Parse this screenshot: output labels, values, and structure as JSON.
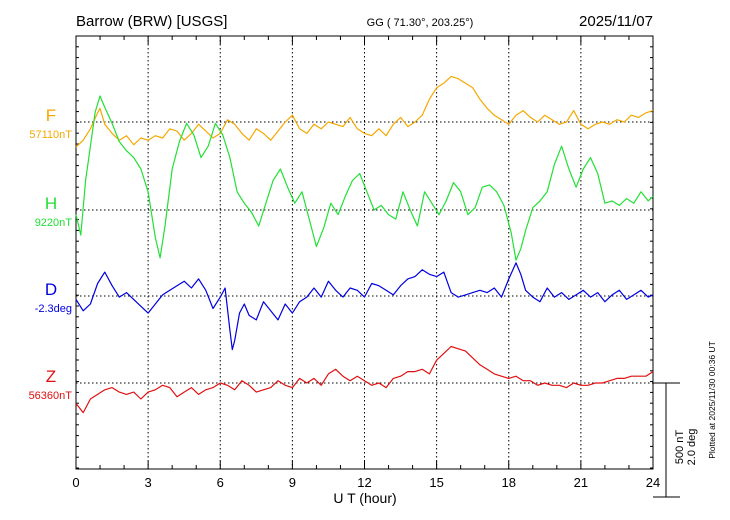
{
  "header": {
    "station": "Barrow (BRW)  [USGS]",
    "coords": "GG ( 71.30°, 203.25°)",
    "date": "2025/11/07"
  },
  "plotted_note": "Plotted at 2025/11/30 00:36 UT",
  "scale": {
    "nt": "500 nT",
    "deg": "2.0 deg"
  },
  "chart_data": {
    "type": "line",
    "xlabel": "U T (hour)",
    "xlim": [
      0,
      24
    ],
    "xticks": [
      0,
      3,
      6,
      9,
      12,
      15,
      18,
      21,
      24
    ],
    "grid": true,
    "series": [
      {
        "name": "F",
        "baseline_label": "57110nT",
        "color": "#f5a800",
        "units": "nT",
        "baseline": 57110,
        "x": [
          0,
          0.3,
          0.6,
          0.9,
          1.0,
          1.2,
          1.5,
          1.8,
          2.1,
          2.4,
          2.7,
          3.0,
          3.3,
          3.6,
          3.9,
          4.2,
          4.5,
          4.8,
          5.1,
          5.4,
          5.7,
          6.0,
          6.3,
          6.6,
          6.9,
          7.2,
          7.5,
          7.8,
          8.1,
          8.4,
          8.7,
          9.0,
          9.3,
          9.6,
          9.9,
          10.2,
          10.5,
          10.8,
          11.1,
          11.4,
          11.7,
          12.0,
          12.3,
          12.6,
          12.9,
          13.2,
          13.5,
          13.8,
          14.1,
          14.4,
          14.7,
          15.0,
          15.3,
          15.6,
          15.9,
          16.2,
          16.5,
          16.8,
          17.1,
          17.4,
          17.7,
          18.0,
          18.3,
          18.6,
          18.9,
          19.2,
          19.5,
          19.8,
          20.1,
          20.4,
          20.7,
          21.0,
          21.3,
          21.6,
          21.9,
          22.2,
          22.5,
          22.8,
          23.1,
          23.4,
          23.7,
          24.0
        ],
        "values": [
          57000,
          57030,
          57080,
          57150,
          57170,
          57100,
          57060,
          57030,
          57050,
          57010,
          57040,
          57030,
          57050,
          57040,
          57080,
          57070,
          57030,
          57060,
          57100,
          57070,
          57040,
          57060,
          57120,
          57100,
          57060,
          57030,
          57080,
          57060,
          57030,
          57070,
          57110,
          57140,
          57080,
          57060,
          57100,
          57080,
          57110,
          57100,
          57090,
          57130,
          57080,
          57060,
          57050,
          57080,
          57050,
          57100,
          57130,
          57090,
          57110,
          57140,
          57210,
          57260,
          57280,
          57310,
          57300,
          57280,
          57260,
          57210,
          57170,
          57140,
          57120,
          57100,
          57140,
          57160,
          57130,
          57110,
          57140,
          57120,
          57100,
          57110,
          57160,
          57100,
          57080,
          57100,
          57110,
          57100,
          57120,
          57110,
          57140,
          57130,
          57150,
          57160
        ]
      },
      {
        "name": "H",
        "baseline_label": "9220nT",
        "color": "#22e035",
        "units": "nT",
        "baseline": 9220,
        "x": [
          0,
          0.2,
          0.4,
          0.6,
          0.8,
          1.0,
          1.2,
          1.5,
          1.8,
          2.1,
          2.4,
          2.7,
          3.0,
          3.3,
          3.5,
          3.7,
          4.0,
          4.3,
          4.6,
          4.9,
          5.2,
          5.5,
          5.8,
          6.1,
          6.4,
          6.7,
          7.0,
          7.3,
          7.6,
          7.9,
          8.2,
          8.5,
          8.8,
          9.1,
          9.4,
          9.7,
          10.0,
          10.3,
          10.6,
          10.9,
          11.2,
          11.5,
          11.8,
          12.1,
          12.4,
          12.7,
          13.0,
          13.3,
          13.6,
          13.9,
          14.2,
          14.5,
          14.8,
          15.1,
          15.4,
          15.7,
          16.0,
          16.3,
          16.6,
          16.9,
          17.2,
          17.5,
          17.8,
          18.1,
          18.3,
          18.5,
          18.7,
          19.0,
          19.3,
          19.6,
          19.9,
          20.2,
          20.5,
          20.8,
          21.1,
          21.4,
          21.7,
          22.0,
          22.3,
          22.6,
          22.9,
          23.2,
          23.5,
          23.8,
          24.0
        ],
        "values": [
          9200,
          9110,
          9350,
          9500,
          9650,
          9720,
          9670,
          9600,
          9520,
          9480,
          9450,
          9400,
          9300,
          9100,
          9010,
          9150,
          9400,
          9520,
          9600,
          9550,
          9450,
          9500,
          9600,
          9550,
          9450,
          9300,
          9250,
          9210,
          9150,
          9250,
          9350,
          9400,
          9320,
          9250,
          9300,
          9180,
          9060,
          9140,
          9250,
          9200,
          9280,
          9350,
          9380,
          9300,
          9220,
          9240,
          9200,
          9180,
          9300,
          9220,
          9150,
          9300,
          9250,
          9200,
          9260,
          9340,
          9300,
          9200,
          9230,
          9320,
          9330,
          9300,
          9240,
          9120,
          9000,
          9050,
          9130,
          9230,
          9260,
          9300,
          9420,
          9500,
          9400,
          9320,
          9400,
          9450,
          9380,
          9250,
          9260,
          9240,
          9270,
          9250,
          9300,
          9260,
          9280
        ]
      },
      {
        "name": "D",
        "baseline_label": "-2.3deg",
        "color": "#0000e0",
        "units": "deg",
        "baseline": -2.3,
        "x": [
          0,
          0.3,
          0.6,
          0.9,
          1.2,
          1.5,
          1.8,
          2.1,
          2.4,
          2.7,
          3.0,
          3.3,
          3.6,
          3.9,
          4.2,
          4.5,
          4.8,
          5.1,
          5.4,
          5.7,
          6.0,
          6.2,
          6.4,
          6.5,
          6.6,
          6.8,
          7.0,
          7.2,
          7.5,
          7.8,
          8.1,
          8.4,
          8.7,
          9.0,
          9.3,
          9.6,
          9.9,
          10.2,
          10.5,
          10.8,
          11.1,
          11.4,
          11.7,
          12.0,
          12.3,
          12.6,
          12.9,
          13.2,
          13.5,
          13.8,
          14.1,
          14.4,
          14.7,
          15.0,
          15.3,
          15.6,
          15.9,
          16.2,
          16.5,
          16.8,
          17.1,
          17.4,
          17.7,
          18.0,
          18.3,
          18.5,
          18.7,
          19.0,
          19.3,
          19.6,
          19.9,
          20.2,
          20.5,
          20.8,
          21.1,
          21.4,
          21.7,
          22.0,
          22.3,
          22.6,
          22.9,
          23.2,
          23.5,
          23.8,
          24.0
        ],
        "values": [
          -2.36,
          -2.56,
          -2.44,
          -2.08,
          -1.88,
          -2.12,
          -2.32,
          -2.24,
          -2.36,
          -2.48,
          -2.6,
          -2.44,
          -2.28,
          -2.2,
          -2.12,
          -2.04,
          -2.16,
          -2.0,
          -2.2,
          -2.52,
          -2.32,
          -2.16,
          -2.9,
          -3.24,
          -3.08,
          -2.6,
          -2.44,
          -2.64,
          -2.72,
          -2.4,
          -2.56,
          -2.72,
          -2.44,
          -2.6,
          -2.4,
          -2.32,
          -2.16,
          -2.32,
          -2.04,
          -2.2,
          -2.32,
          -2.16,
          -2.2,
          -2.32,
          -2.08,
          -2.12,
          -2.2,
          -2.28,
          -2.12,
          -2.0,
          -1.96,
          -1.84,
          -1.92,
          -1.96,
          -1.88,
          -2.24,
          -2.32,
          -2.28,
          -2.24,
          -2.2,
          -2.24,
          -2.16,
          -2.32,
          -2.0,
          -1.72,
          -1.92,
          -2.2,
          -2.32,
          -2.4,
          -2.16,
          -2.32,
          -2.24,
          -2.36,
          -2.28,
          -2.2,
          -2.32,
          -2.24,
          -2.4,
          -2.28,
          -2.2,
          -2.36,
          -2.28,
          -2.2,
          -2.32,
          -2.28
        ]
      },
      {
        "name": "Z",
        "baseline_label": "56360nT",
        "color": "#e01010",
        "units": "nT",
        "baseline": 56360,
        "x": [
          0,
          0.3,
          0.6,
          0.9,
          1.2,
          1.5,
          1.8,
          2.1,
          2.4,
          2.7,
          3.0,
          3.3,
          3.6,
          3.9,
          4.2,
          4.5,
          4.8,
          5.1,
          5.4,
          5.7,
          6.0,
          6.3,
          6.6,
          6.9,
          7.2,
          7.5,
          7.8,
          8.1,
          8.4,
          8.7,
          9.0,
          9.3,
          9.6,
          9.9,
          10.2,
          10.5,
          10.8,
          11.1,
          11.4,
          11.7,
          12.0,
          12.3,
          12.6,
          12.9,
          13.2,
          13.5,
          13.8,
          14.1,
          14.4,
          14.7,
          15.0,
          15.3,
          15.6,
          15.9,
          16.2,
          16.5,
          16.8,
          17.1,
          17.4,
          17.7,
          18.0,
          18.3,
          18.6,
          18.9,
          19.2,
          19.5,
          19.8,
          20.1,
          20.4,
          20.7,
          21.0,
          21.3,
          21.6,
          21.9,
          22.2,
          22.5,
          22.8,
          23.1,
          23.4,
          23.7,
          24.0
        ],
        "values": [
          56270,
          56230,
          56290,
          56310,
          56330,
          56340,
          56320,
          56310,
          56320,
          56290,
          56320,
          56330,
          56350,
          56340,
          56300,
          56320,
          56340,
          56310,
          56330,
          56340,
          56360,
          56350,
          56330,
          56370,
          56350,
          56320,
          56330,
          56340,
          56370,
          56350,
          56340,
          56380,
          56360,
          56380,
          56350,
          56400,
          56420,
          56390,
          56370,
          56390,
          56370,
          56350,
          56360,
          56340,
          56380,
          56390,
          56410,
          56410,
          56420,
          56400,
          56460,
          56490,
          56520,
          56510,
          56500,
          56470,
          56440,
          56420,
          56400,
          56390,
          56380,
          56390,
          56370,
          56370,
          56350,
          56360,
          56350,
          56350,
          56340,
          56360,
          56350,
          56350,
          56360,
          56360,
          56370,
          56380,
          56380,
          56390,
          56390,
          56390,
          56410
        ]
      }
    ]
  }
}
